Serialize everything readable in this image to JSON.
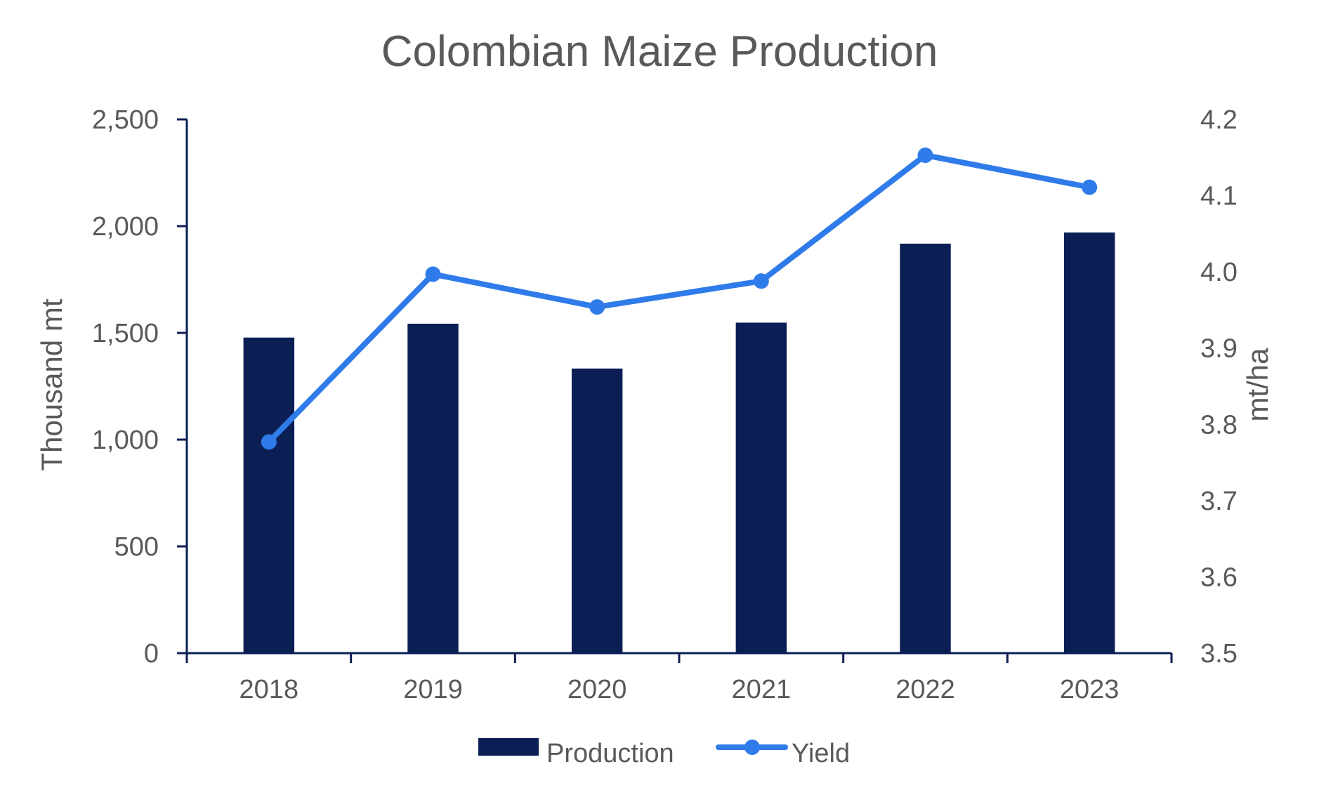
{
  "colors": {
    "text": "#595959",
    "axis": "#0B1F55",
    "production": "#0B1F55",
    "yield": "#2F7BEA"
  },
  "chart_data": {
    "type": "bar",
    "title": "Colombian Maize Production",
    "categories": [
      "2018",
      "2019",
      "2020",
      "2021",
      "2022",
      "2023"
    ],
    "series": [
      {
        "name": "Production",
        "type": "bar",
        "axis": "left",
        "values": [
          1478,
          1543,
          1333,
          1548,
          1918,
          1970
        ]
      },
      {
        "name": "Yield",
        "type": "line",
        "axis": "right",
        "values": [
          3.777,
          3.997,
          3.954,
          3.988,
          4.153,
          4.111
        ]
      }
    ],
    "ylabel": "Thousand mt",
    "y2label": "mt/ha",
    "ylim": [
      0,
      2500
    ],
    "y2lim": [
      3.5,
      4.2
    ],
    "yticks": [
      "0",
      "500",
      "1,000",
      "1,500",
      "2,000",
      "2,500"
    ],
    "y2ticks": [
      "3.5",
      "3.6",
      "3.7",
      "3.8",
      "3.9",
      "4.0",
      "4.1",
      "4.2"
    ],
    "grid": false,
    "legend_position": "bottom"
  }
}
